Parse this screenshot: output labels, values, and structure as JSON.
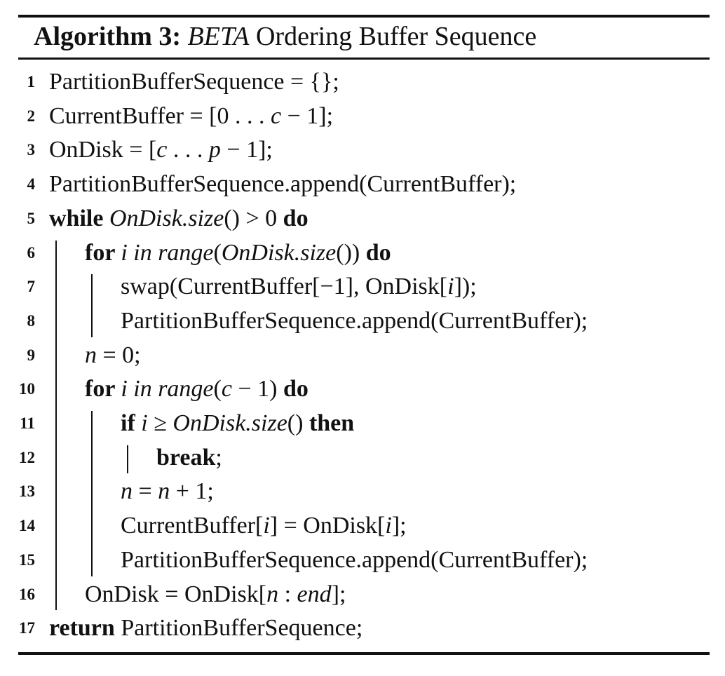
{
  "algorithm": {
    "label": "Algorithm 3:",
    "name": "BETA",
    "title_rest": "Ordering Buffer Sequence"
  },
  "lines": [
    {
      "num": "1",
      "indent": 0,
      "parts": [
        {
          "t": "PartitionBufferSequence = {};",
          "s": "n"
        }
      ]
    },
    {
      "num": "2",
      "indent": 0,
      "parts": [
        {
          "t": "CurrentBuffer = [0 . . . ",
          "s": "n"
        },
        {
          "t": "c",
          "s": "i"
        },
        {
          "t": " − 1];",
          "s": "n"
        }
      ]
    },
    {
      "num": "3",
      "indent": 0,
      "parts": [
        {
          "t": "OnDisk = [",
          "s": "n"
        },
        {
          "t": "c",
          "s": "i"
        },
        {
          "t": " . . . ",
          "s": "n"
        },
        {
          "t": "p",
          "s": "i"
        },
        {
          "t": " − 1];",
          "s": "n"
        }
      ]
    },
    {
      "num": "4",
      "indent": 0,
      "parts": [
        {
          "t": "PartitionBufferSequence.append(CurrentBuffer);",
          "s": "n"
        }
      ]
    },
    {
      "num": "5",
      "indent": 0,
      "parts": [
        {
          "t": "while ",
          "s": "b"
        },
        {
          "t": "OnDisk.size",
          "s": "i"
        },
        {
          "t": "() > 0 ",
          "s": "n"
        },
        {
          "t": "do",
          "s": "b"
        }
      ]
    },
    {
      "num": "6",
      "indent": 1,
      "parts": [
        {
          "t": "for ",
          "s": "b"
        },
        {
          "t": "i in range",
          "s": "i"
        },
        {
          "t": "(",
          "s": "n"
        },
        {
          "t": "OnDisk.size",
          "s": "i"
        },
        {
          "t": "()) ",
          "s": "n"
        },
        {
          "t": "do",
          "s": "b"
        }
      ]
    },
    {
      "num": "7",
      "indent": 2,
      "parts": [
        {
          "t": "swap(CurrentBuffer[−1], OnDisk[",
          "s": "n"
        },
        {
          "t": "i",
          "s": "i"
        },
        {
          "t": "]);",
          "s": "n"
        }
      ]
    },
    {
      "num": "8",
      "indent": 2,
      "parts": [
        {
          "t": "PartitionBufferSequence.append(CurrentBuffer);",
          "s": "n"
        }
      ]
    },
    {
      "num": "9",
      "indent": 1,
      "parts": [
        {
          "t": "n",
          "s": "i"
        },
        {
          "t": " = 0;",
          "s": "n"
        }
      ]
    },
    {
      "num": "10",
      "indent": 1,
      "parts": [
        {
          "t": "for ",
          "s": "b"
        },
        {
          "t": "i in range",
          "s": "i"
        },
        {
          "t": "(",
          "s": "n"
        },
        {
          "t": "c",
          "s": "i"
        },
        {
          "t": " − 1) ",
          "s": "n"
        },
        {
          "t": "do",
          "s": "b"
        }
      ]
    },
    {
      "num": "11",
      "indent": 2,
      "parts": [
        {
          "t": "if ",
          "s": "b"
        },
        {
          "t": "i",
          "s": "i"
        },
        {
          "t": " ≥ ",
          "s": "n"
        },
        {
          "t": "OnDisk.size",
          "s": "i"
        },
        {
          "t": "() ",
          "s": "n"
        },
        {
          "t": "then",
          "s": "b"
        }
      ]
    },
    {
      "num": "12",
      "indent": 3,
      "parts": [
        {
          "t": "break",
          "s": "b"
        },
        {
          "t": ";",
          "s": "n"
        }
      ]
    },
    {
      "num": "13",
      "indent": 2,
      "parts": [
        {
          "t": "n",
          "s": "i"
        },
        {
          "t": " = ",
          "s": "n"
        },
        {
          "t": "n",
          "s": "i"
        },
        {
          "t": " + 1;",
          "s": "n"
        }
      ]
    },
    {
      "num": "14",
      "indent": 2,
      "parts": [
        {
          "t": "CurrentBuffer[",
          "s": "n"
        },
        {
          "t": "i",
          "s": "i"
        },
        {
          "t": "] = OnDisk[",
          "s": "n"
        },
        {
          "t": "i",
          "s": "i"
        },
        {
          "t": "];",
          "s": "n"
        }
      ]
    },
    {
      "num": "15",
      "indent": 2,
      "parts": [
        {
          "t": "PartitionBufferSequence.append(CurrentBuffer);",
          "s": "n"
        }
      ]
    },
    {
      "num": "16",
      "indent": 1,
      "parts": [
        {
          "t": "OnDisk = OnDisk[",
          "s": "n"
        },
        {
          "t": "n",
          "s": "i"
        },
        {
          "t": " : ",
          "s": "n"
        },
        {
          "t": "end",
          "s": "i"
        },
        {
          "t": "];",
          "s": "n"
        }
      ]
    },
    {
      "num": "17",
      "indent": 0,
      "parts": [
        {
          "t": "return ",
          "s": "b"
        },
        {
          "t": "PartitionBufferSequence;",
          "s": "n"
        }
      ]
    }
  ]
}
